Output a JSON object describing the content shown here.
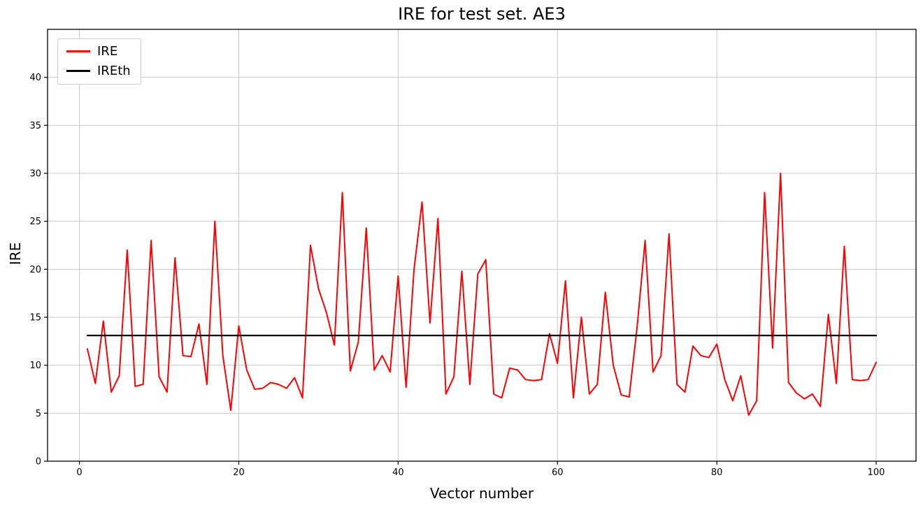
{
  "figure": {
    "background": "#ffffff",
    "spine_color": "#000000",
    "tick_label_color": "#000000"
  },
  "chart_data": {
    "type": "line",
    "title": "IRE for test set. AE3",
    "xlabel": "Vector number",
    "ylabel": "IRE",
    "xlim": [
      -4,
      105
    ],
    "ylim": [
      0,
      45
    ],
    "xticks": [
      0,
      20,
      40,
      60,
      80,
      100
    ],
    "yticks": [
      0,
      5,
      10,
      15,
      20,
      25,
      30,
      35,
      40
    ],
    "grid": true,
    "grid_color": "#c9c9c9",
    "legend": {
      "position": "upper-left",
      "entries": [
        {
          "label": "IRE",
          "color": "#ff0000"
        },
        {
          "label": "IREth",
          "color": "#000000"
        }
      ]
    },
    "series": [
      {
        "name": "IRE",
        "color": "#ff0000",
        "line_width": 2,
        "x_start": 1,
        "values": [
          11.7,
          8.1,
          14.6,
          7.2,
          8.9,
          22.0,
          7.8,
          8.0,
          23.0,
          8.8,
          7.2,
          21.2,
          11.0,
          10.9,
          14.3,
          8.0,
          25.0,
          11.0,
          5.3,
          14.1,
          9.5,
          7.5,
          7.6,
          8.2,
          8.0,
          7.6,
          8.7,
          6.6,
          22.5,
          18.0,
          15.5,
          12.1,
          28.0,
          9.4,
          12.4,
          24.3,
          9.5,
          11.0,
          9.3,
          19.3,
          7.7,
          20.0,
          27.0,
          14.4,
          25.3,
          7.0,
          8.8,
          19.8,
          8.0,
          19.5,
          21.0,
          7.0,
          6.6,
          9.7,
          9.5,
          8.5,
          8.4,
          8.5,
          13.3,
          10.2,
          18.8,
          6.6,
          15.0,
          7.0,
          8.0,
          17.6,
          10.0,
          6.9,
          6.7,
          14.0,
          23.0,
          9.3,
          11.0,
          23.7,
          8.0,
          7.2,
          12.0,
          11.0,
          10.8,
          12.2,
          8.5,
          6.3,
          8.9,
          4.8,
          6.3,
          28.0,
          11.8,
          30.0,
          8.2,
          7.1,
          6.5,
          7.0,
          5.7,
          15.3,
          8.1,
          22.4,
          8.5,
          8.4,
          8.5,
          10.3
        ]
      },
      {
        "name": "IREth",
        "color": "#000000",
        "line_width": 2.2,
        "x": [
          1,
          100
        ],
        "values": [
          13.1,
          13.1
        ]
      }
    ]
  }
}
